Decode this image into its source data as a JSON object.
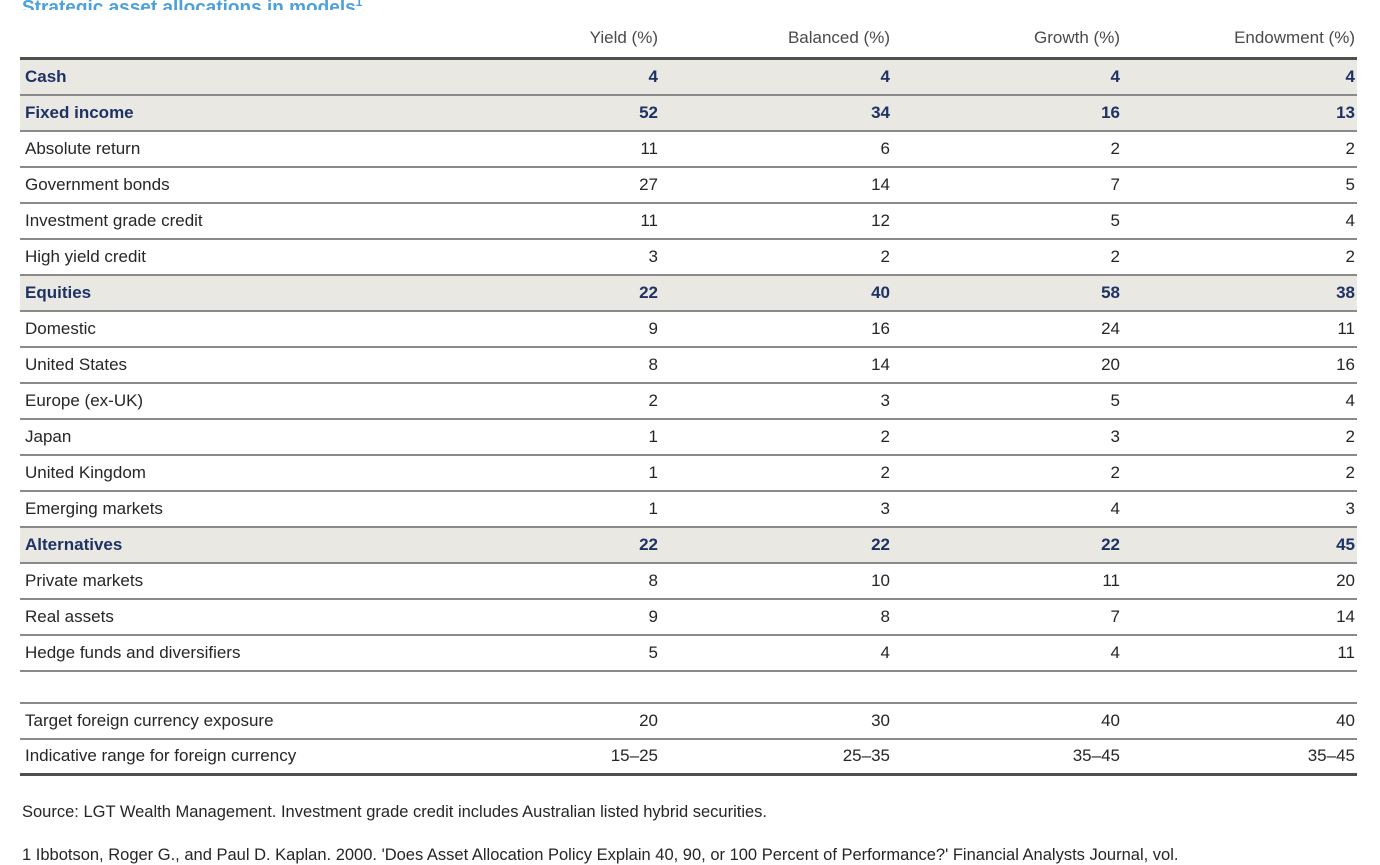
{
  "page": {
    "title": "Strategic asset allocations in models",
    "title_superscript": "1",
    "accent_blue": "#4da0dc",
    "emphasis_navy": "#1e3264",
    "shaded_row_bg": "#e9e8e3"
  },
  "table": {
    "columns": [
      "Yield (%)",
      "Balanced (%)",
      "Growth (%)",
      "Endowment (%)"
    ],
    "rows": [
      {
        "label": "Cash",
        "values": [
          "4",
          "4",
          "4",
          "4"
        ],
        "emphasis": true
      },
      {
        "label": "Fixed income",
        "values": [
          "52",
          "34",
          "16",
          "13"
        ],
        "emphasis": true
      },
      {
        "label": "Absolute return",
        "values": [
          "11",
          "6",
          "2",
          "2"
        ],
        "emphasis": false
      },
      {
        "label": "Government bonds",
        "values": [
          "27",
          "14",
          "7",
          "5"
        ],
        "emphasis": false
      },
      {
        "label": "Investment grade credit",
        "values": [
          "11",
          "12",
          "5",
          "4"
        ],
        "emphasis": false
      },
      {
        "label": "High yield credit",
        "values": [
          "3",
          "2",
          "2",
          "2"
        ],
        "emphasis": false
      },
      {
        "label": "Equities",
        "values": [
          "22",
          "40",
          "58",
          "38"
        ],
        "emphasis": true
      },
      {
        "label": "Domestic",
        "values": [
          "9",
          "16",
          "24",
          "11"
        ],
        "emphasis": false
      },
      {
        "label": "United States",
        "values": [
          "8",
          "14",
          "20",
          "16"
        ],
        "emphasis": false
      },
      {
        "label": "Europe (ex-UK)",
        "values": [
          "2",
          "3",
          "5",
          "4"
        ],
        "emphasis": false
      },
      {
        "label": "Japan",
        "values": [
          "1",
          "2",
          "3",
          "2"
        ],
        "emphasis": false
      },
      {
        "label": "United Kingdom",
        "values": [
          "1",
          "2",
          "2",
          "2"
        ],
        "emphasis": false
      },
      {
        "label": "Emerging markets",
        "values": [
          "1",
          "3",
          "4",
          "3"
        ],
        "emphasis": false
      },
      {
        "label": "Alternatives",
        "values": [
          "22",
          "22",
          "22",
          "45"
        ],
        "emphasis": true
      },
      {
        "label": "Private markets",
        "values": [
          "8",
          "10",
          "11",
          "20"
        ],
        "emphasis": false
      },
      {
        "label": "Real assets",
        "values": [
          "9",
          "8",
          "7",
          "14"
        ],
        "emphasis": false
      },
      {
        "label": "Hedge funds and diversifiers",
        "values": [
          "5",
          "4",
          "4",
          "11"
        ],
        "emphasis": false
      }
    ],
    "currency_rows": [
      {
        "label": "Target foreign currency exposure",
        "values": [
          "20",
          "30",
          "40",
          "40"
        ],
        "emphasis": false
      },
      {
        "label": "Indicative range for foreign currency",
        "values": [
          "15–25",
          "25–35",
          "35–45",
          "35–45"
        ],
        "emphasis": false
      }
    ]
  },
  "footer": {
    "source_line": "Source: LGT Wealth Management. Investment grade credit includes Australian listed hybrid securities.",
    "footnote_line": "1 Ibbotson, Roger G., and Paul D. Kaplan. 2000. 'Does Asset Allocation Policy Explain 40, 90, or 100 Percent of Performance?' Financial Analysts Journal, vol."
  }
}
